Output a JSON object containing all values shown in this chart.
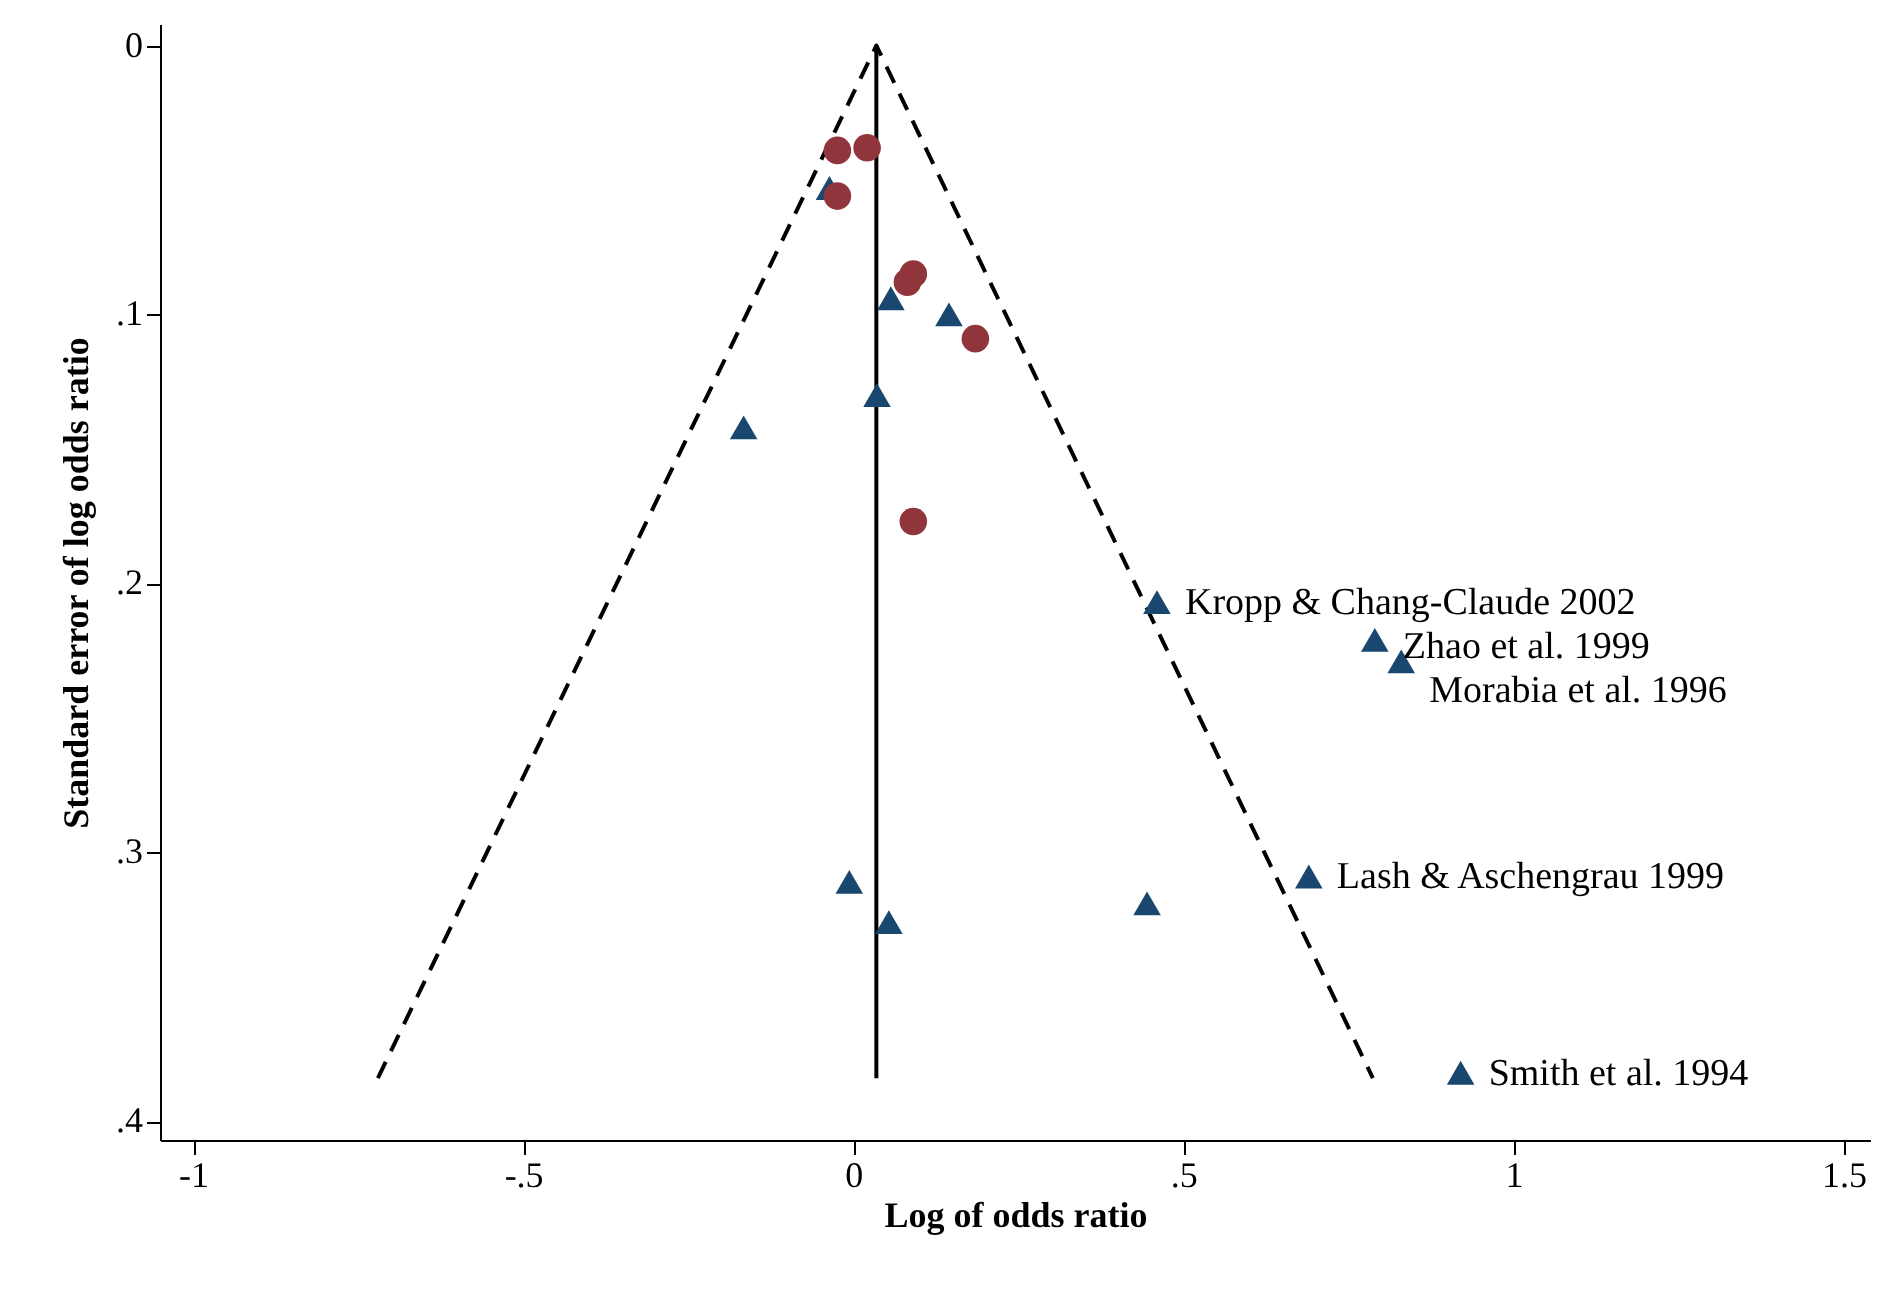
{
  "chart_data": {
    "type": "scatter",
    "xlabel": "Log of odds ratio",
    "ylabel": "Standard error of log odds ratio",
    "xlim": [
      -1.05,
      1.54
    ],
    "ylim": [
      0.407,
      -0.008
    ],
    "xticks": [
      -1,
      {
        "value": -0.5,
        "label": "-.5"
      },
      0,
      {
        "value": 0.5,
        "label": ".5"
      },
      1,
      1.5
    ],
    "yticks": [
      0,
      {
        "value": 0.1,
        "label": ".1"
      },
      {
        "value": 0.2,
        "label": ".2"
      },
      {
        "value": 0.3,
        "label": ".3"
      },
      {
        "value": 0.4,
        "label": ".4"
      }
    ],
    "grid": false,
    "series": [
      {
        "type": "line",
        "color": "#000000",
        "line_style": "dashed",
        "marker": "none",
        "x": [
          -0.72,
          0.035,
          0.787
        ],
        "values": [
          0.384,
          0,
          0.384
        ]
      },
      {
        "type": "line",
        "color": "#000000",
        "line_style": "solid",
        "marker": "none",
        "x": [
          0.035,
          0.035
        ],
        "values": [
          0,
          0.384
        ]
      },
      {
        "type": "scatter",
        "color": "#1a476f",
        "marker": "triangle",
        "x": [
          -0.036,
          0.057,
          0.145,
          0.036,
          -0.166,
          0.46,
          0.79,
          0.83,
          0.69,
          -0.006,
          0.445,
          0.054,
          0.92
        ],
        "values": [
          0.053,
          0.094,
          0.1,
          0.13,
          0.142,
          0.207,
          0.221,
          0.229,
          0.309,
          0.311,
          0.319,
          0.326,
          0.382
        ]
      },
      {
        "type": "scatter",
        "color": "#90353b",
        "marker": "circle",
        "x": [
          -0.024,
          0.021,
          -0.024,
          0.091,
          0.082,
          0.185,
          0.091
        ],
        "values": [
          0.039,
          0.038,
          0.056,
          0.085,
          0.088,
          0.109,
          0.177
        ]
      }
    ],
    "annotations": [
      {
        "text": "Kropp & Chang-Claude 2002",
        "x": 0.46,
        "y": 0.207
      },
      {
        "text": "Zhao et al. 1999",
        "x": 0.79,
        "y": 0.221
      },
      {
        "text": "Morabia et al. 1996",
        "x": 0.83,
        "y": 0.229
      },
      {
        "text": "Lash & Aschengrau 1999",
        "x": 0.69,
        "y": 0.309
      },
      {
        "text": "Smith et al. 1994",
        "x": 0.92,
        "y": 0.382
      }
    ]
  }
}
